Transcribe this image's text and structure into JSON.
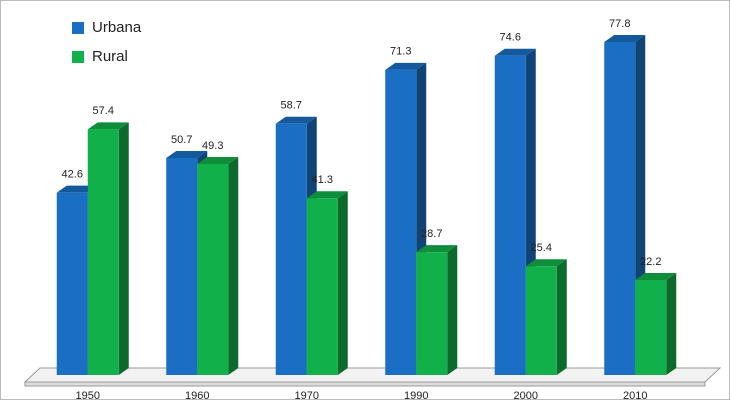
{
  "chart_data": {
    "type": "bar3d",
    "categories": [
      "1950",
      "1960",
      "1970",
      "1990",
      "2000",
      "2010"
    ],
    "series": [
      {
        "name": "Urbana",
        "color": "#1a6fc4",
        "values": [
          42.6,
          50.7,
          58.7,
          71.3,
          74.6,
          77.8
        ]
      },
      {
        "name": "Rural",
        "color": "#12b04a",
        "values": [
          57.4,
          49.3,
          41.3,
          28.7,
          25.4,
          22.2
        ]
      }
    ],
    "legend": "top-left"
  }
}
